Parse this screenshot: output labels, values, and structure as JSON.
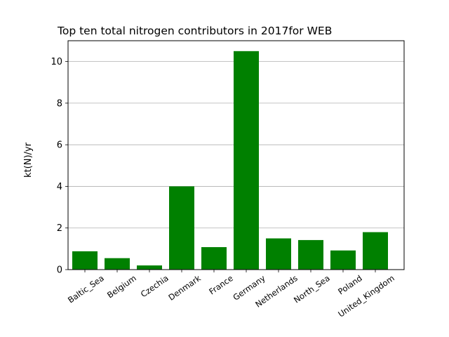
{
  "chart_data": {
    "type": "bar",
    "title": "Top ten total nitrogen contributors in 2017for  WEB",
    "xlabel": "",
    "ylabel": "kt(N)/yr",
    "categories": [
      "Baltic_Sea",
      "Belgium",
      "Czechia",
      "Denmark",
      "France",
      "Germany",
      "Netherlands",
      "North_Sea",
      "Poland",
      "United_Kingdom"
    ],
    "values": [
      0.88,
      0.55,
      0.2,
      4.0,
      1.08,
      10.5,
      1.5,
      1.42,
      0.92,
      1.8
    ],
    "ylim": [
      0,
      11
    ],
    "yticks": [
      0,
      2,
      4,
      6,
      8,
      10
    ],
    "grid": "y",
    "legend": "none",
    "bar_color": "#008000"
  }
}
